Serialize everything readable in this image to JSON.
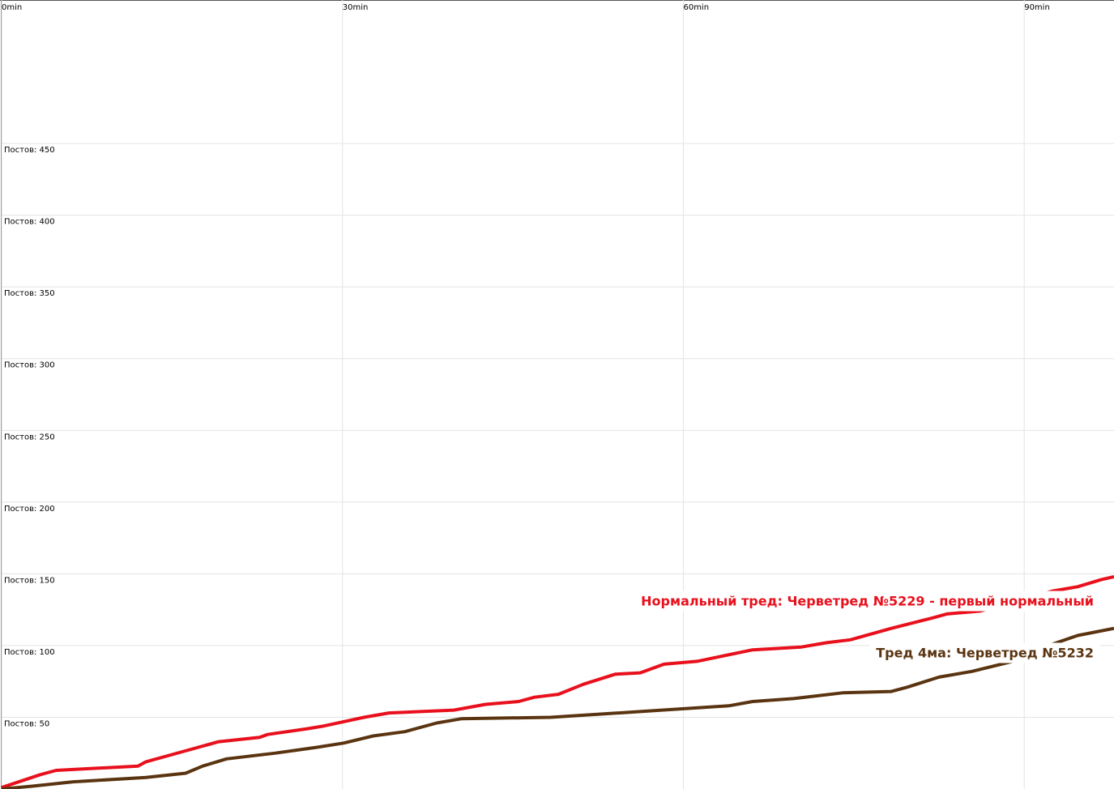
{
  "chart_data": {
    "type": "line",
    "xlim": [
      0,
      97.9
    ],
    "ylim": [
      0,
      550
    ],
    "xticks": [
      {
        "value": 0,
        "label": "0min"
      },
      {
        "value": 30,
        "label": "30min"
      },
      {
        "value": 60,
        "label": "60min"
      },
      {
        "value": 90,
        "label": "90min"
      }
    ],
    "yticks": [
      {
        "value": 50,
        "label": "Постов: 50"
      },
      {
        "value": 100,
        "label": "Постов: 100"
      },
      {
        "value": 150,
        "label": "Постов: 150"
      },
      {
        "value": 200,
        "label": "Постов: 200"
      },
      {
        "value": 250,
        "label": "Постов: 250"
      },
      {
        "value": 300,
        "label": "Постов: 300"
      },
      {
        "value": 350,
        "label": "Постов: 350"
      },
      {
        "value": 400,
        "label": "Постов: 400"
      },
      {
        "value": 450,
        "label": "Постов: 450"
      }
    ],
    "grid": true,
    "series": [
      {
        "name": "Нормальный тред: Черветред №5229 - первый нормальный",
        "color": "#e8101c",
        "x": [
          0,
          3.4,
          4.8,
          12,
          12.7,
          15.9,
          19.1,
          22.7,
          23.4,
          26.9,
          28.4,
          31.9,
          34.1,
          39.8,
          42.6,
          45.5,
          46.9,
          49,
          51.2,
          54,
          56.2,
          58.3,
          61.2,
          66.1,
          70.4,
          72.6,
          74.7,
          78.3,
          81.8,
          83.2,
          86.1,
          92.5,
          94.7,
          96.8,
          97.9
        ],
        "values": [
          1,
          10,
          13,
          16,
          19,
          26,
          33,
          36,
          38,
          42,
          44,
          50,
          53,
          55,
          59,
          61,
          64,
          66,
          73,
          80,
          81,
          87,
          89,
          97,
          99,
          102,
          104,
          112,
          119,
          122,
          124,
          138,
          141,
          146,
          148
        ]
      },
      {
        "name": "Тред 4ма: Черветред №5232",
        "color": "#5a3410",
        "x": [
          0,
          2.7,
          6.3,
          12.7,
          16.2,
          17.7,
          19.8,
          24.1,
          27.7,
          30.1,
          32.7,
          35.5,
          38.3,
          40.5,
          48.3,
          56.2,
          64,
          66.1,
          69.7,
          74,
          78.3,
          79.7,
          82.5,
          85.4,
          89,
          92.5,
          94.7,
          97.9
        ],
        "values": [
          0,
          2,
          5,
          8,
          11,
          16,
          21,
          25,
          29,
          32,
          37,
          40,
          46,
          49,
          50,
          54,
          58,
          61,
          63,
          67,
          68,
          71,
          78,
          82,
          89,
          101,
          107,
          112
        ]
      }
    ]
  }
}
